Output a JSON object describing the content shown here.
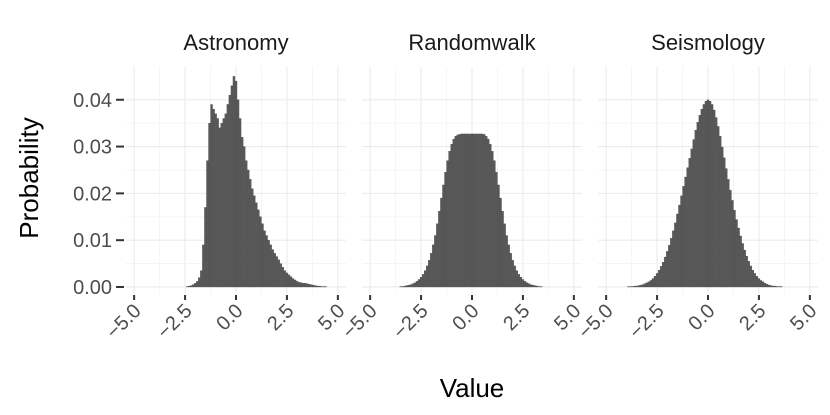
{
  "chart_data": {
    "type": "bar",
    "xlabel": "Value",
    "ylabel": "Probability",
    "xlim": [
      -5.4,
      5.4
    ],
    "ylim": [
      -0.0015,
      0.047
    ],
    "x_ticks": [
      -5.0,
      -2.5,
      0.0,
      2.5,
      5.0
    ],
    "x_tick_labels": [
      "−5.0",
      "−2.5",
      "0.0",
      "2.5",
      "5.0"
    ],
    "y_ticks": [
      0.0,
      0.01,
      0.02,
      0.03,
      0.04
    ],
    "y_tick_labels": [
      "0.00",
      "0.01",
      "0.02",
      "0.03",
      "0.04"
    ],
    "grid": true,
    "bin_width": 0.1,
    "bar_color": "#595959",
    "facets": [
      {
        "title": "Astronomy",
        "x": [
          -2.5,
          -2.4,
          -2.3,
          -2.2,
          -2.1,
          -2.0,
          -1.9,
          -1.8,
          -1.7,
          -1.6,
          -1.5,
          -1.4,
          -1.3,
          -1.2,
          -1.1,
          -1.0,
          -0.9,
          -0.8,
          -0.7,
          -0.6,
          -0.5,
          -0.4,
          -0.3,
          -0.2,
          -0.1,
          0.0,
          0.1,
          0.2,
          0.3,
          0.4,
          0.5,
          0.6,
          0.7,
          0.8,
          0.9,
          1.0,
          1.1,
          1.2,
          1.3,
          1.4,
          1.5,
          1.6,
          1.7,
          1.8,
          1.9,
          2.0,
          2.1,
          2.2,
          2.3,
          2.4,
          2.5,
          2.6,
          2.7,
          2.8,
          2.9,
          3.0,
          3.1,
          3.2,
          3.3,
          3.4,
          3.5,
          3.6,
          3.7,
          3.8,
          3.9,
          4.0,
          4.1,
          4.2,
          4.3,
          4.4,
          4.5
        ],
        "values": [
          0.0,
          0.0001,
          0.0002,
          0.0003,
          0.0005,
          0.0008,
          0.0012,
          0.002,
          0.0035,
          0.009,
          0.017,
          0.027,
          0.035,
          0.039,
          0.038,
          0.037,
          0.036,
          0.034,
          0.035,
          0.036,
          0.037,
          0.039,
          0.041,
          0.043,
          0.045,
          0.044,
          0.04,
          0.036,
          0.032,
          0.03,
          0.027,
          0.025,
          0.023,
          0.021,
          0.0195,
          0.018,
          0.0165,
          0.015,
          0.0135,
          0.012,
          0.011,
          0.01,
          0.009,
          0.008,
          0.0072,
          0.0065,
          0.0058,
          0.005,
          0.0042,
          0.0035,
          0.003,
          0.0026,
          0.0022,
          0.0018,
          0.0015,
          0.0012,
          0.001,
          0.0009,
          0.0008,
          0.0008,
          0.0007,
          0.0006,
          0.0005,
          0.0004,
          0.0003,
          0.0002,
          0.0002,
          0.0001,
          0.0001,
          0.0001,
          0.0
        ]
      },
      {
        "title": "Randomwalk",
        "x": [
          -3.5,
          -3.4,
          -3.3,
          -3.2,
          -3.1,
          -3.0,
          -2.9,
          -2.8,
          -2.7,
          -2.6,
          -2.5,
          -2.4,
          -2.3,
          -2.2,
          -2.1,
          -2.0,
          -1.9,
          -1.8,
          -1.7,
          -1.6,
          -1.5,
          -1.4,
          -1.3,
          -1.2,
          -1.1,
          -1.0,
          -0.9,
          -0.8,
          -0.7,
          -0.6,
          -0.5,
          -0.4,
          -0.3,
          -0.2,
          -0.1,
          0.0,
          0.1,
          0.2,
          0.3,
          0.4,
          0.5,
          0.6,
          0.7,
          0.8,
          0.9,
          1.0,
          1.1,
          1.2,
          1.3,
          1.4,
          1.5,
          1.6,
          1.7,
          1.8,
          1.9,
          2.0,
          2.1,
          2.2,
          2.3,
          2.4,
          2.5,
          2.6,
          2.7,
          2.8,
          2.9,
          3.0,
          3.1,
          3.2,
          3.3,
          3.4,
          3.5
        ],
        "values": [
          0.0001,
          0.0001,
          0.0002,
          0.0003,
          0.0004,
          0.0005,
          0.0007,
          0.0009,
          0.0012,
          0.0016,
          0.0021,
          0.0027,
          0.0035,
          0.0045,
          0.0057,
          0.0072,
          0.009,
          0.011,
          0.0135,
          0.0162,
          0.019,
          0.0218,
          0.0245,
          0.027,
          0.029,
          0.0305,
          0.0316,
          0.0322,
          0.0325,
          0.0326,
          0.0327,
          0.0327,
          0.0327,
          0.0327,
          0.0327,
          0.0327,
          0.0327,
          0.0327,
          0.0327,
          0.0327,
          0.0327,
          0.0326,
          0.0322,
          0.0316,
          0.0305,
          0.029,
          0.027,
          0.0245,
          0.0218,
          0.019,
          0.0162,
          0.0135,
          0.011,
          0.009,
          0.0072,
          0.0057,
          0.0045,
          0.0035,
          0.0027,
          0.0021,
          0.0016,
          0.0012,
          0.0009,
          0.0007,
          0.0005,
          0.0004,
          0.0003,
          0.0002,
          0.0001,
          0.0001,
          0.0
        ]
      },
      {
        "title": "Seismology",
        "x": [
          -4.0,
          -3.9,
          -3.8,
          -3.7,
          -3.6,
          -3.5,
          -3.4,
          -3.3,
          -3.2,
          -3.1,
          -3.0,
          -2.9,
          -2.8,
          -2.7,
          -2.6,
          -2.5,
          -2.4,
          -2.3,
          -2.2,
          -2.1,
          -2.0,
          -1.9,
          -1.8,
          -1.7,
          -1.6,
          -1.5,
          -1.4,
          -1.3,
          -1.2,
          -1.1,
          -1.0,
          -0.9,
          -0.8,
          -0.7,
          -0.6,
          -0.5,
          -0.4,
          -0.3,
          -0.2,
          -0.1,
          0.0,
          0.1,
          0.2,
          0.3,
          0.4,
          0.5,
          0.6,
          0.7,
          0.8,
          0.9,
          1.0,
          1.1,
          1.2,
          1.3,
          1.4,
          1.5,
          1.6,
          1.7,
          1.8,
          1.9,
          2.0,
          2.1,
          2.2,
          2.3,
          2.4,
          2.5,
          2.6,
          2.7,
          2.8,
          2.9,
          3.0,
          3.1,
          3.2,
          3.3,
          3.4,
          3.5,
          3.6,
          3.7,
          3.8,
          3.9,
          4.0
        ],
        "values": [
          0.0,
          0.0001,
          0.0001,
          0.0001,
          0.0002,
          0.0002,
          0.0003,
          0.0004,
          0.0005,
          0.0007,
          0.0009,
          0.0011,
          0.0014,
          0.0018,
          0.0023,
          0.0029,
          0.0036,
          0.0044,
          0.0053,
          0.0064,
          0.0076,
          0.0089,
          0.0104,
          0.012,
          0.0137,
          0.0156,
          0.0175,
          0.0195,
          0.0215,
          0.0235,
          0.0255,
          0.0275,
          0.0295,
          0.0315,
          0.0335,
          0.0352,
          0.0367,
          0.038,
          0.039,
          0.0397,
          0.04,
          0.0397,
          0.039,
          0.0378,
          0.0362,
          0.0343,
          0.0322,
          0.0299,
          0.0276,
          0.0253,
          0.023,
          0.0207,
          0.0185,
          0.0164,
          0.0144,
          0.0126,
          0.0109,
          0.0093,
          0.0079,
          0.0066,
          0.0055,
          0.0045,
          0.0036,
          0.0029,
          0.0023,
          0.0018,
          0.0014,
          0.0011,
          0.0008,
          0.0006,
          0.0004,
          0.0003,
          0.0002,
          0.0002,
          0.0001,
          0.0001,
          0.0001,
          0.0,
          0.0,
          0.0,
          0.0
        ]
      }
    ]
  }
}
